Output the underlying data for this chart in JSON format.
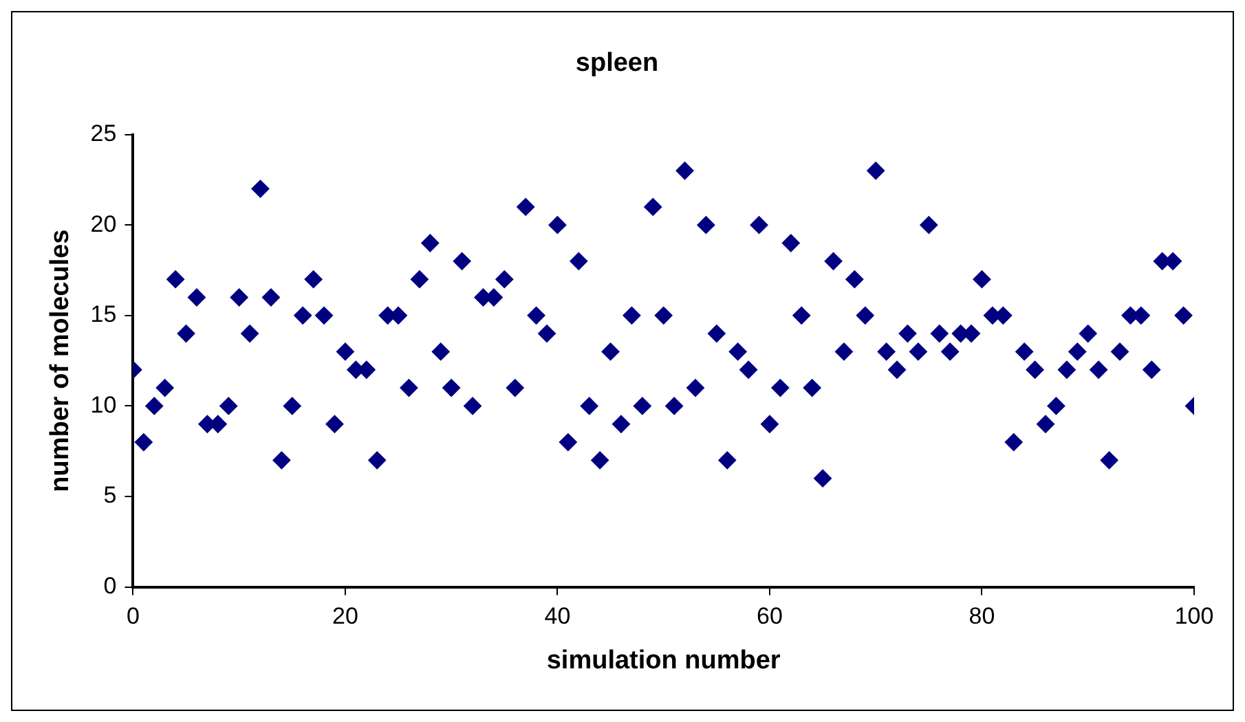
{
  "chart_data": {
    "type": "scatter",
    "title": "spleen",
    "xlabel": "simulation number",
    "ylabel": "number of molecules",
    "x": [
      0,
      1,
      2,
      3,
      4,
      5,
      6,
      7,
      8,
      9,
      10,
      11,
      12,
      13,
      14,
      15,
      16,
      17,
      18,
      19,
      20,
      21,
      22,
      23,
      24,
      25,
      26,
      27,
      28,
      29,
      30,
      31,
      32,
      33,
      34,
      35,
      36,
      37,
      38,
      39,
      40,
      41,
      42,
      43,
      44,
      45,
      46,
      47,
      48,
      49,
      50,
      51,
      52,
      53,
      54,
      55,
      56,
      57,
      58,
      59,
      60,
      61,
      62,
      63,
      64,
      65,
      66,
      67,
      68,
      69,
      70,
      71,
      72,
      73,
      74,
      75,
      76,
      77,
      78,
      79,
      80,
      81,
      82,
      83,
      84,
      85,
      86,
      87,
      88,
      89,
      90,
      91,
      92,
      93,
      94,
      95,
      96,
      97,
      98,
      99,
      100
    ],
    "series": [
      {
        "color": "#000080",
        "values": [
          12,
          8,
          10,
          11,
          17,
          14,
          16,
          9,
          9,
          10,
          16,
          14,
          22,
          16,
          7,
          10,
          15,
          17,
          15,
          9,
          13,
          12,
          12,
          7,
          15,
          15,
          11,
          17,
          19,
          13,
          11,
          18,
          10,
          16,
          16,
          17,
          11,
          21,
          15,
          14,
          20,
          8,
          18,
          10,
          7,
          13,
          9,
          15,
          10,
          21,
          15,
          10,
          23,
          11,
          20,
          14,
          7,
          13,
          12,
          20,
          9,
          11,
          19,
          15,
          11,
          6,
          18,
          13,
          17,
          15,
          23,
          13,
          12,
          14,
          13,
          20,
          14,
          13,
          14,
          14,
          17,
          15,
          15,
          8,
          13,
          12,
          9,
          10,
          12,
          13,
          14,
          12,
          7,
          13,
          15,
          15,
          12,
          18,
          18,
          15,
          10
        ]
      }
    ],
    "xlim": [
      0,
      100
    ],
    "xticks": [
      0,
      20,
      40,
      60,
      80,
      100
    ],
    "ylim": [
      0,
      25
    ],
    "yticks": [
      0,
      5,
      10,
      15,
      20,
      25
    ],
    "grid": false,
    "legend": false,
    "marker": "diamond"
  }
}
